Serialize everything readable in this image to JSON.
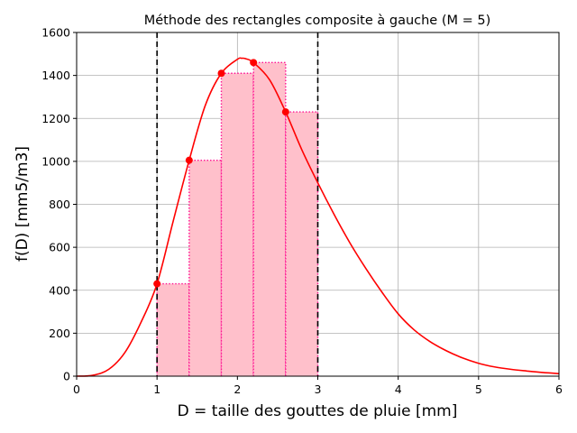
{
  "chart_data": {
    "type": "line",
    "title": "Méthode des rectangles composite à gauche (M = 5)",
    "xlabel": "D = taille des gouttes de pluie [mm]",
    "ylabel": "f(D) [mm5/m3]",
    "xlim": [
      0,
      6
    ],
    "ylim": [
      0,
      1600
    ],
    "xticks": [
      0,
      1,
      2,
      3,
      4,
      5,
      6
    ],
    "yticks": [
      0,
      200,
      400,
      600,
      800,
      1000,
      1200,
      1400,
      1600
    ],
    "grid": true,
    "integration_bounds": [
      1,
      3
    ],
    "curve": {
      "x": [
        0,
        0.2,
        0.4,
        0.6,
        0.8,
        1.0,
        1.2,
        1.4,
        1.6,
        1.8,
        2.0,
        2.05,
        2.1,
        2.2,
        2.4,
        2.6,
        2.8,
        3.0,
        3.2,
        3.4,
        3.6,
        3.8,
        4.0,
        4.2,
        4.4,
        4.6,
        4.8,
        5.0,
        5.2,
        5.4,
        5.6,
        5.8,
        6.0
      ],
      "y": [
        0,
        4,
        32,
        110,
        250,
        430,
        720,
        1005,
        1260,
        1410,
        1475,
        1480,
        1478,
        1460,
        1380,
        1230,
        1055,
        900,
        755,
        620,
        500,
        390,
        290,
        215,
        160,
        118,
        85,
        60,
        43,
        32,
        24,
        17,
        12
      ]
    },
    "rectangles": [
      {
        "x0": 1.0,
        "x1": 1.4,
        "height": 430
      },
      {
        "x0": 1.4,
        "x1": 1.8,
        "height": 1005
      },
      {
        "x0": 1.8,
        "x1": 2.2,
        "height": 1410
      },
      {
        "x0": 2.2,
        "x1": 2.6,
        "height": 1460
      },
      {
        "x0": 2.6,
        "x1": 3.0,
        "height": 1230
      }
    ],
    "sample_points": {
      "x": [
        1.0,
        1.4,
        1.8,
        2.2,
        2.6
      ],
      "y": [
        430,
        1005,
        1410,
        1460,
        1230
      ]
    },
    "colors": {
      "curve": "#ff0000",
      "points": "#ff0000",
      "rect_fill": "#ffc0cb",
      "rect_edge": "#ff1493",
      "bounds": "#000000",
      "grid": "#b0b0b0"
    }
  }
}
